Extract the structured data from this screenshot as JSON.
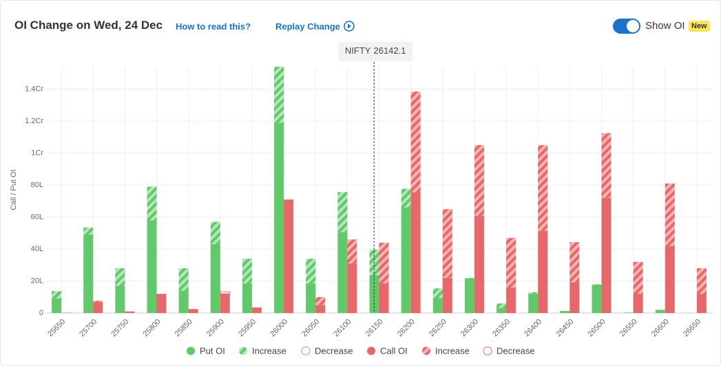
{
  "header": {
    "title": "OI Change on Wed, 24 Dec",
    "help_link": "How to read this?",
    "replay": "Replay Change",
    "toggle_label": "Show OI",
    "badge": "New"
  },
  "chart_data": {
    "type": "bar",
    "y_label": "Call / Put OI",
    "spot": {
      "label": "NIFTY",
      "value": 26142.1
    },
    "categories": [
      25650,
      25700,
      25750,
      25800,
      25850,
      25900,
      25950,
      26000,
      26050,
      26100,
      26150,
      26200,
      26250,
      26300,
      26350,
      26400,
      26450,
      26500,
      26550,
      26600,
      26650
    ],
    "series": [
      {
        "name": "Put OI",
        "color": "#62c96b",
        "values": [
          9,
          49,
          17,
          58,
          14,
          43,
          18.5,
          119,
          18.5,
          50.6,
          23.6,
          66,
          9.4,
          21.5,
          3,
          12,
          1.3,
          17.6,
          0.3,
          2,
          0
        ]
      },
      {
        "name": "Increase",
        "color": "#62c96b",
        "values": [
          4.7,
          4.5,
          11,
          21,
          14,
          14,
          15.5,
          35,
          15.5,
          25,
          16,
          11.7,
          6,
          0.5,
          3,
          1,
          0,
          0.4,
          0,
          0,
          0
        ]
      },
      {
        "name": "Decrease",
        "color": "#62c96b",
        "values": [
          0,
          0,
          0,
          0,
          0,
          0,
          0,
          0,
          0,
          0,
          0,
          0,
          0,
          0,
          0,
          0,
          0,
          0,
          0,
          0,
          0
        ]
      },
      {
        "name": "Call OI",
        "color": "#e8686a",
        "values": [
          0.2,
          7,
          1,
          12,
          2.5,
          12,
          3.5,
          71,
          5,
          31,
          18.5,
          75.5,
          22,
          61,
          16,
          51.5,
          19.3,
          72,
          12,
          42,
          12
        ]
      },
      {
        "name": "Increase",
        "color": "#e8686a",
        "values": [
          0,
          0.7,
          0,
          0,
          0,
          0,
          0,
          0,
          5,
          15,
          25.5,
          63,
          43,
          44,
          31,
          53.5,
          25,
          40.5,
          20,
          39,
          16
        ]
      },
      {
        "name": "Decrease",
        "color": "#e8686a",
        "values": [
          0,
          0,
          0,
          0,
          0,
          1.3,
          0,
          0,
          0,
          0,
          0,
          0,
          0,
          0,
          0,
          0,
          0,
          0,
          0,
          0,
          0
        ]
      }
    ],
    "ylim": [
      0,
      154
    ],
    "yticks": [
      0,
      {
        "value": 20,
        "label": "20L"
      },
      {
        "value": 40,
        "label": "40L"
      },
      {
        "value": 60,
        "label": "60L"
      },
      {
        "value": 80,
        "label": "80L"
      },
      {
        "value": 100,
        "label": "1Cr"
      },
      {
        "value": 120,
        "label": "1.2Cr"
      },
      {
        "value": 140,
        "label": "1.4Cr"
      }
    ],
    "grid": true
  }
}
